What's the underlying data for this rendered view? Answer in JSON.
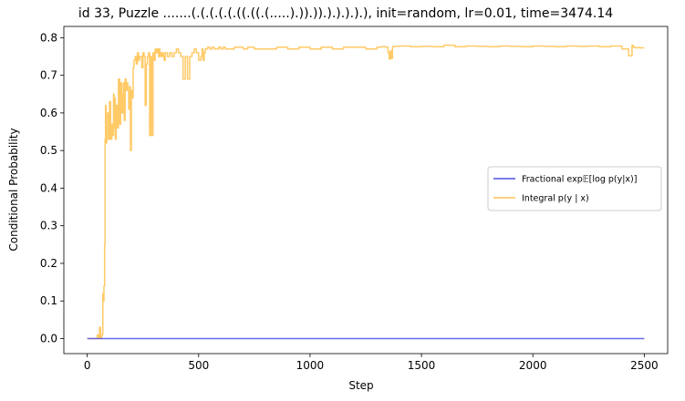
{
  "chart_data": {
    "type": "line",
    "title": "id 33, Puzzle .......(.(.(.(.(.((.((.(.....).)).)).).).).).), init=random, lr=0.01, time=3474.14",
    "xlabel": "Step",
    "ylabel": "Conditional Probability",
    "xlim": [
      -105,
      2605
    ],
    "ylim": [
      -0.04,
      0.83
    ],
    "xticks": [
      0,
      500,
      1000,
      1500,
      2000,
      2500
    ],
    "yticks": [
      0.0,
      0.1,
      0.2,
      0.3,
      0.4,
      0.5,
      0.6,
      0.7,
      0.8
    ],
    "xtick_labels": [
      "0",
      "500",
      "1000",
      "1500",
      "2000",
      "2500"
    ],
    "ytick_labels": [
      "0.0",
      "0.1",
      "0.2",
      "0.3",
      "0.4",
      "0.5",
      "0.6",
      "0.7",
      "0.8"
    ],
    "grid": false,
    "legend_position": "center-right",
    "series": [
      {
        "name": "Fractional exp𝔼[log p(y|x)]",
        "color": "#5050e6",
        "x": [
          0,
          2500
        ],
        "y": [
          0.0,
          0.0
        ]
      },
      {
        "name": "Integral p(y | x)",
        "color": "#ffc457",
        "x": [
          0,
          40,
          45,
          50,
          55,
          60,
          65,
          70,
          72,
          75,
          78,
          80,
          82,
          85,
          88,
          92,
          95,
          100,
          105,
          110,
          115,
          118,
          120,
          123,
          126,
          130,
          135,
          140,
          145,
          150,
          155,
          160,
          163,
          166,
          170,
          175,
          178,
          182,
          186,
          190,
          194,
          198,
          202,
          206,
          210,
          215,
          220,
          225,
          230,
          235,
          240,
          245,
          250,
          255,
          260,
          265,
          270,
          275,
          280,
          285,
          290,
          295,
          300,
          305,
          310,
          315,
          320,
          322,
          326,
          330,
          335,
          340,
          343,
          345,
          350,
          360,
          370,
          380,
          390,
          400,
          410,
          420,
          430,
          440,
          450,
          460,
          470,
          480,
          490,
          500,
          510,
          515,
          520,
          525,
          530,
          540,
          550,
          560,
          570,
          580,
          590,
          600,
          610,
          620,
          640,
          660,
          680,
          700,
          720,
          750,
          800,
          850,
          900,
          950,
          1000,
          1050,
          1100,
          1150,
          1200,
          1250,
          1300,
          1320,
          1340,
          1350,
          1355,
          1360,
          1365,
          1370,
          1380,
          1400,
          1450,
          1500,
          1550,
          1600,
          1650,
          1700,
          1750,
          1800,
          1850,
          1900,
          1950,
          2000,
          2050,
          2100,
          2150,
          2200,
          2250,
          2300,
          2350,
          2400,
          2430,
          2445,
          2450,
          2460,
          2470,
          2480,
          2500
        ],
        "y": [
          0.0,
          0.0,
          0.01,
          0.0,
          0.03,
          0.0,
          0.01,
          0.12,
          0.1,
          0.14,
          0.25,
          0.53,
          0.62,
          0.52,
          0.55,
          0.6,
          0.53,
          0.63,
          0.53,
          0.57,
          0.54,
          0.65,
          0.56,
          0.64,
          0.53,
          0.62,
          0.56,
          0.69,
          0.57,
          0.68,
          0.6,
          0.65,
          0.68,
          0.58,
          0.69,
          0.66,
          0.68,
          0.66,
          0.61,
          0.67,
          0.5,
          0.66,
          0.64,
          0.72,
          0.74,
          0.75,
          0.73,
          0.76,
          0.74,
          0.75,
          0.75,
          0.72,
          0.76,
          0.75,
          0.62,
          0.73,
          0.75,
          0.76,
          0.54,
          0.75,
          0.54,
          0.76,
          0.74,
          0.77,
          0.76,
          0.77,
          0.75,
          0.77,
          0.75,
          0.76,
          0.75,
          0.76,
          0.75,
          0.74,
          0.76,
          0.75,
          0.76,
          0.75,
          0.76,
          0.77,
          0.76,
          0.75,
          0.69,
          0.75,
          0.69,
          0.75,
          0.76,
          0.77,
          0.76,
          0.74,
          0.75,
          0.77,
          0.74,
          0.76,
          0.77,
          0.775,
          0.77,
          0.775,
          0.77,
          0.77,
          0.775,
          0.77,
          0.775,
          0.77,
          0.77,
          0.775,
          0.775,
          0.77,
          0.775,
          0.77,
          0.77,
          0.775,
          0.77,
          0.775,
          0.77,
          0.775,
          0.77,
          0.775,
          0.775,
          0.77,
          0.775,
          0.776,
          0.775,
          0.76,
          0.743,
          0.765,
          0.745,
          0.776,
          0.777,
          0.778,
          0.776,
          0.777,
          0.776,
          0.78,
          0.776,
          0.778,
          0.777,
          0.776,
          0.778,
          0.777,
          0.776,
          0.778,
          0.777,
          0.776,
          0.778,
          0.777,
          0.778,
          0.776,
          0.778,
          0.77,
          0.752,
          0.78,
          0.775,
          0.773,
          0.774,
          0.773,
          0.773
        ]
      }
    ]
  }
}
